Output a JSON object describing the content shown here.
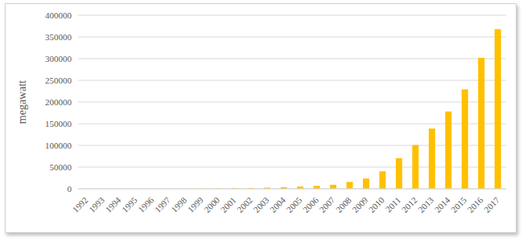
{
  "chart_data": {
    "type": "bar",
    "y_label": "megawatt",
    "categories": [
      "1992",
      "1993",
      "1994",
      "1995",
      "1996",
      "1997",
      "1998",
      "1999",
      "2000",
      "2001",
      "2002",
      "2003",
      "2004",
      "2005",
      "2006",
      "2007",
      "2008",
      "2009",
      "2010",
      "2011",
      "2012",
      "2013",
      "2014",
      "2015",
      "2016",
      "2017"
    ],
    "values": [
      105,
      130,
      150,
      190,
      240,
      310,
      400,
      550,
      800,
      1150,
      1750,
      2600,
      3700,
      5100,
      6700,
      9200,
      15800,
      23600,
      40300,
      70500,
      100900,
      138900,
      178400,
      229300,
      302000,
      368000
    ],
    "color": "#ffc000",
    "ylim": [
      0,
      400000
    ],
    "yticks": [
      0,
      50000,
      100000,
      150000,
      200000,
      250000,
      300000,
      350000,
      400000
    ],
    "grid": true
  }
}
